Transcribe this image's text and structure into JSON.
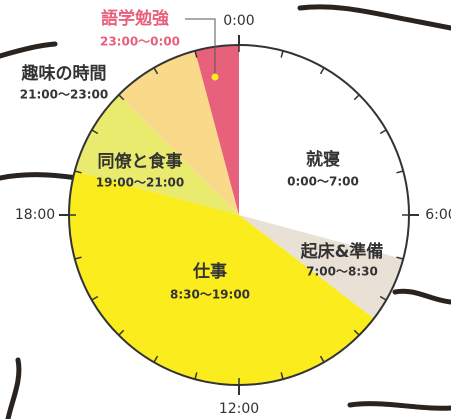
{
  "chart_data": {
    "type": "pie",
    "categories": [
      "就寝",
      "起床&準備",
      "仕事",
      "同僚と食事",
      "趣味の時間",
      "語学勉強"
    ],
    "ranges": [
      "0:00〜7:00",
      "7:00〜8:30",
      "8:30〜19:00",
      "19:00〜21:00",
      "21:00〜23:00",
      "23:00〜0:00"
    ],
    "values": [
      7,
      1.5,
      10.5,
      2,
      2,
      1
    ],
    "colors": [
      "#ffffff",
      "#e9e1d6",
      "#fbec1e",
      "#e9eb6e",
      "#f9d98a",
      "#e8617c"
    ],
    "lim": [
      0,
      24
    ],
    "ticks": [
      {
        "value": 0,
        "label": "0:00"
      },
      {
        "value": 6,
        "label": "6:00"
      },
      {
        "value": 12,
        "label": "12:00"
      },
      {
        "value": 18,
        "label": "18:00"
      }
    ]
  }
}
